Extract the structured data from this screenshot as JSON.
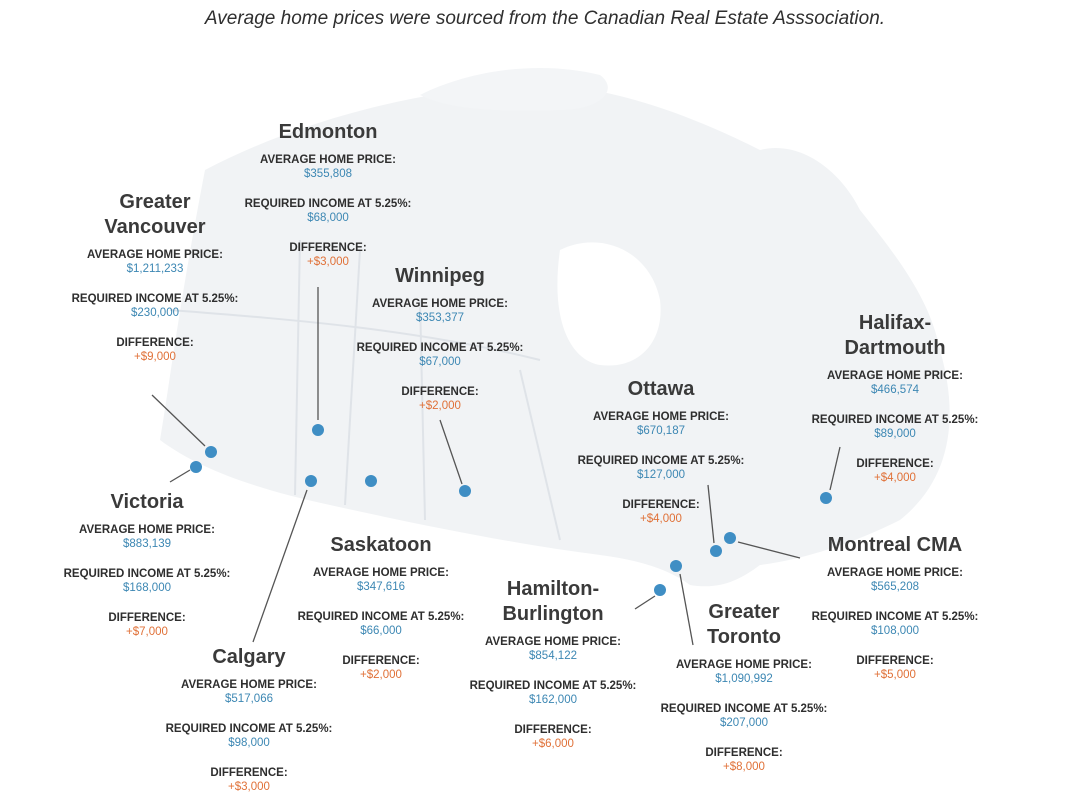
{
  "source_note": "Average home prices were sourced from the Canadian Real Estate Asssociation.",
  "colors": {
    "value_blue": "#3c87b3",
    "difference_orange": "#e07138",
    "marker": "#3f8ec4",
    "leader_line": "#555555",
    "land": "#f1f3f5",
    "province_border": "#dfe3e8"
  },
  "labels": {
    "avg_price": "AVERAGE HOME PRICE:",
    "required_income": "REQUIRED INCOME AT 5.25%:",
    "difference": "DIFFERENCE:"
  },
  "cities": [
    {
      "id": "edmonton",
      "name": [
        "Edmonton"
      ],
      "avg_price": "$355,808",
      "required_income": "$68,000",
      "difference": "+$3,000"
    },
    {
      "id": "greater-vancouver",
      "name": [
        "Greater",
        "Vancouver"
      ],
      "avg_price": "$1,211,233",
      "required_income": "$230,000",
      "difference": "+$9,000"
    },
    {
      "id": "winnipeg",
      "name": [
        "Winnipeg"
      ],
      "avg_price": "$353,377",
      "required_income": "$67,000",
      "difference": "+$2,000"
    },
    {
      "id": "halifax-dartmouth",
      "name": [
        "Halifax-",
        "Dartmouth"
      ],
      "avg_price": "$466,574",
      "required_income": "$89,000",
      "difference": "+$4,000"
    },
    {
      "id": "ottawa",
      "name": [
        "Ottawa"
      ],
      "avg_price": "$670,187",
      "required_income": "$127,000",
      "difference": "+$4,000"
    },
    {
      "id": "victoria",
      "name": [
        "Victoria"
      ],
      "avg_price": "$883,139",
      "required_income": "$168,000",
      "difference": "+$7,000"
    },
    {
      "id": "saskatoon",
      "name": [
        "Saskatoon"
      ],
      "avg_price": "$347,616",
      "required_income": "$66,000",
      "difference": "+$2,000"
    },
    {
      "id": "montreal-cma",
      "name": [
        "Montreal CMA"
      ],
      "avg_price": "$565,208",
      "required_income": "$108,000",
      "difference": "+$5,000"
    },
    {
      "id": "hamilton-burlington",
      "name": [
        "Hamilton-",
        "Burlington"
      ],
      "avg_price": "$854,122",
      "required_income": "$162,000",
      "difference": "+$6,000"
    },
    {
      "id": "greater-toronto",
      "name": [
        "Greater",
        "Toronto"
      ],
      "avg_price": "$1,090,992",
      "required_income": "$207,000",
      "difference": "+$8,000"
    },
    {
      "id": "calgary",
      "name": [
        "Calgary"
      ],
      "avg_price": "$517,066",
      "required_income": "$98,000",
      "difference": "+$3,000"
    }
  ]
}
